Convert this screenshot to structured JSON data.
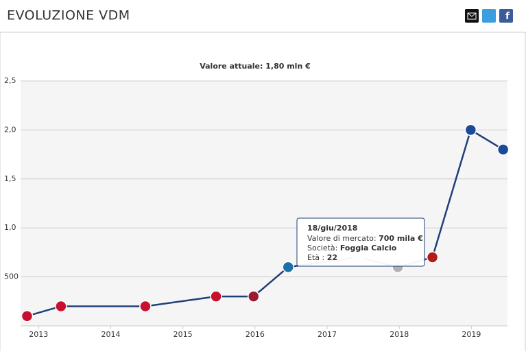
{
  "header": {
    "title": "EVOLUZIONE VDM"
  },
  "chart_data": {
    "type": "line",
    "subtitle": "Valore attuale: 1,80 mln €",
    "x": [
      2012.84,
      2013.31,
      2014.48,
      2015.46,
      2015.98,
      2016.46,
      2017.43,
      2017.98,
      2018.46,
      2018.99,
      2019.44
    ],
    "series": [
      {
        "color": "#1f3f77",
        "values": [
          100,
          200,
          200,
          300,
          300,
          600,
          700,
          600,
          700,
          2000,
          1800
        ]
      }
    ],
    "marker_colors": [
      "#c8102e",
      "#c8102e",
      "#c8102e",
      "#c8102e",
      "#9b1b30",
      "#1f6fa8",
      "#dddddd",
      "#b0b0b0",
      "#b31b1b",
      "#1a4b9b",
      "#1a4b9b"
    ],
    "xlim": [
      2012.75,
      2019.5
    ],
    "xticks": [
      2013,
      2014,
      2015,
      2016,
      2017,
      2018,
      2019
    ],
    "ylim": [
      0,
      2500
    ],
    "yticks": [
      500,
      {
        "value": 1000,
        "label": "1,0"
      },
      {
        "value": 1500,
        "label": "1,5"
      },
      {
        "value": 2000,
        "label": "2,0"
      },
      {
        "value": 2500,
        "label": "2,5"
      }
    ],
    "grid": true,
    "tooltip": {
      "date": "18/giu/2018",
      "value_label": "Valore di mercato: ",
      "value": "700 mila €",
      "club_label": "Società: ",
      "club": "Foggia Calcio",
      "age_label": "Età : ",
      "age": "22"
    }
  }
}
